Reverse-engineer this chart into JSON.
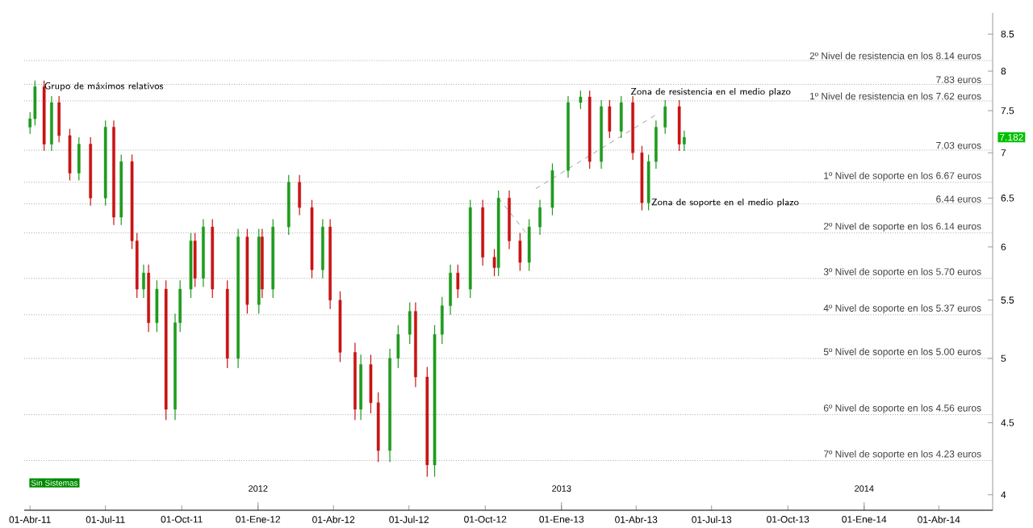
{
  "chart_data": {
    "type": "candlestick",
    "log": true,
    "xlim": [
      "2011-03-25",
      "2014-06-05"
    ],
    "ylim": [
      3.9,
      8.8
    ],
    "yticks": [
      4,
      4.5,
      5,
      5.5,
      6,
      6.5,
      7,
      7.5,
      8,
      8.5
    ],
    "xticks": [
      {
        "value": "2011-04-01",
        "label": "01-Abr-11"
      },
      {
        "value": "2011-07-01",
        "label": "01-Jul-11"
      },
      {
        "value": "2011-10-01",
        "label": "01-Oct-11"
      },
      {
        "value": "2012-01-01",
        "label": "01-Ene-12"
      },
      {
        "value": "2012-04-01",
        "label": "01-Abr-12"
      },
      {
        "value": "2012-07-01",
        "label": "01-Jul-12"
      },
      {
        "value": "2012-10-01",
        "label": "01-Oct-12"
      },
      {
        "value": "2013-01-01",
        "label": "01-Ene-13"
      },
      {
        "value": "2013-04-01",
        "label": "01-Abr-13"
      },
      {
        "value": "2013-07-01",
        "label": "01-Jul-13"
      },
      {
        "value": "2013-10-01",
        "label": "01-Oct-13"
      },
      {
        "value": "2014-01-01",
        "label": "01-Ene-14"
      },
      {
        "value": "2014-04-01",
        "label": "01-Abr-14"
      }
    ],
    "x": [
      "2011-04-01",
      "2011-04-07",
      "2011-04-18",
      "2011-04-27",
      "2011-05-06",
      "2011-05-19",
      "2011-05-30",
      "2011-06-13",
      "2011-07-01",
      "2011-07-11",
      "2011-07-20",
      "2011-08-02",
      "2011-08-08",
      "2011-08-16",
      "2011-08-22",
      "2011-09-01",
      "2011-09-12",
      "2011-09-23",
      "2011-09-29",
      "2011-10-12",
      "2011-10-17",
      "2011-10-27",
      "2011-11-07",
      "2011-11-25",
      "2011-12-08",
      "2011-12-19",
      "2012-01-02",
      "2012-01-06",
      "2012-01-19",
      "2012-02-07",
      "2012-02-20",
      "2012-03-06",
      "2012-03-19",
      "2012-03-28",
      "2012-04-09",
      "2012-04-27",
      "2012-05-04",
      "2012-05-16",
      "2012-05-25",
      "2012-06-08",
      "2012-06-18",
      "2012-07-02",
      "2012-07-09",
      "2012-07-23",
      "2012-08-01",
      "2012-08-10",
      "2012-08-20",
      "2012-08-29",
      "2012-09-13",
      "2012-09-28",
      "2012-10-12",
      "2012-10-17",
      "2012-10-30",
      "2012-11-12",
      "2012-11-23",
      "2012-12-06",
      "2012-12-21",
      "2013-01-09",
      "2013-01-24",
      "2013-02-04",
      "2013-02-18",
      "2013-02-28",
      "2013-03-14",
      "2013-03-28",
      "2013-04-08",
      "2013-04-16",
      "2013-04-25",
      "2013-05-06",
      "2013-05-23",
      "2013-05-29"
    ],
    "ohlc": [
      [
        7.3,
        7.48,
        7.22,
        7.4
      ],
      [
        7.4,
        7.88,
        7.32,
        7.8
      ],
      [
        7.8,
        7.88,
        7.02,
        7.1
      ],
      [
        7.1,
        7.68,
        7.02,
        7.6
      ],
      [
        7.6,
        7.68,
        7.12,
        7.2
      ],
      [
        7.2,
        7.28,
        6.69,
        6.77
      ],
      [
        6.77,
        7.18,
        6.69,
        7.1
      ],
      [
        7.1,
        7.18,
        6.42,
        6.5
      ],
      [
        6.5,
        7.38,
        6.42,
        7.3
      ],
      [
        7.3,
        7.38,
        6.22,
        6.3
      ],
      [
        6.3,
        6.98,
        6.22,
        6.9
      ],
      [
        6.9,
        6.98,
        5.98,
        6.06
      ],
      [
        6.06,
        6.14,
        5.52,
        5.6
      ],
      [
        5.6,
        5.83,
        5.52,
        5.75
      ],
      [
        5.75,
        5.83,
        5.22,
        5.3
      ],
      [
        5.3,
        5.68,
        5.22,
        5.6
      ],
      [
        5.6,
        5.68,
        4.52,
        4.6
      ],
      [
        4.6,
        5.38,
        4.52,
        5.3
      ],
      [
        5.3,
        5.68,
        5.22,
        5.6
      ],
      [
        5.6,
        6.14,
        5.52,
        6.06
      ],
      [
        6.06,
        6.14,
        5.62,
        5.7
      ],
      [
        5.7,
        6.28,
        5.62,
        6.2
      ],
      [
        6.2,
        6.28,
        5.52,
        5.6
      ],
      [
        5.6,
        5.68,
        4.92,
        5.0
      ],
      [
        5.0,
        6.18,
        4.92,
        6.1
      ],
      [
        6.1,
        6.18,
        5.38,
        5.46
      ],
      [
        5.46,
        6.18,
        5.38,
        6.1
      ],
      [
        6.1,
        6.18,
        5.52,
        5.6
      ],
      [
        5.6,
        6.28,
        5.52,
        6.2
      ],
      [
        6.2,
        6.75,
        6.12,
        6.67
      ],
      [
        6.67,
        6.75,
        6.32,
        6.4
      ],
      [
        6.4,
        6.48,
        5.7,
        5.78
      ],
      [
        5.78,
        6.28,
        5.7,
        6.2
      ],
      [
        6.2,
        6.28,
        5.42,
        5.5
      ],
      [
        5.5,
        5.58,
        4.97,
        5.05
      ],
      [
        5.05,
        5.13,
        4.52,
        4.6
      ],
      [
        4.6,
        5.03,
        4.52,
        4.95
      ],
      [
        4.95,
        5.03,
        4.57,
        4.65
      ],
      [
        4.65,
        4.73,
        4.22,
        4.3
      ],
      [
        4.3,
        5.08,
        4.22,
        5.0
      ],
      [
        5.0,
        5.28,
        4.92,
        5.2
      ],
      [
        5.2,
        5.48,
        5.12,
        5.4
      ],
      [
        5.4,
        5.48,
        4.77,
        4.85
      ],
      [
        4.85,
        4.93,
        4.12,
        4.2
      ],
      [
        4.2,
        5.28,
        4.12,
        5.2
      ],
      [
        5.2,
        5.53,
        5.12,
        5.45
      ],
      [
        5.45,
        5.83,
        5.37,
        5.75
      ],
      [
        5.75,
        5.83,
        5.52,
        5.6
      ],
      [
        5.6,
        6.48,
        5.52,
        6.4
      ],
      [
        6.4,
        6.48,
        5.82,
        5.9
      ],
      [
        5.9,
        5.98,
        5.72,
        5.8
      ],
      [
        5.8,
        6.58,
        5.72,
        6.5
      ],
      [
        6.5,
        6.58,
        5.98,
        6.06
      ],
      [
        6.06,
        6.14,
        5.77,
        5.85
      ],
      [
        5.85,
        6.28,
        5.77,
        6.2
      ],
      [
        6.2,
        6.48,
        6.12,
        6.4
      ],
      [
        6.4,
        6.88,
        6.32,
        6.8
      ],
      [
        6.8,
        7.68,
        6.72,
        7.6
      ],
      [
        7.6,
        7.75,
        7.52,
        7.67
      ],
      [
        7.67,
        7.75,
        6.82,
        6.9
      ],
      [
        6.9,
        7.63,
        6.82,
        7.55
      ],
      [
        7.55,
        7.63,
        7.17,
        7.25
      ],
      [
        7.25,
        7.68,
        7.17,
        7.6
      ],
      [
        7.6,
        7.68,
        6.92,
        7.0
      ],
      [
        7.0,
        7.08,
        6.37,
        6.45
      ],
      [
        6.45,
        6.98,
        6.37,
        6.9
      ],
      [
        6.9,
        7.38,
        6.82,
        7.3
      ],
      [
        7.3,
        7.63,
        7.22,
        7.55
      ],
      [
        7.55,
        7.63,
        7.02,
        7.1
      ],
      [
        7.1,
        7.26,
        7.02,
        7.18
      ]
    ],
    "series": [
      {
        "type": "line",
        "color": "#888888",
        "line_style": "dashed",
        "x": [
          "2012-10-17",
          "2012-11-23"
        ],
        "values": [
          6.5,
          6.1
        ]
      },
      {
        "type": "line",
        "color": "#888888",
        "line_style": "dashed",
        "x": [
          "2012-12-01",
          "2013-04-25"
        ],
        "values": [
          6.6,
          7.45
        ]
      }
    ],
    "ref_lines": [
      {
        "axis": "y",
        "value": 8.14,
        "label": "2º Nivel de resistencia en los 8.14 euros"
      },
      {
        "axis": "y",
        "value": 7.83,
        "label": "7.83 euros"
      },
      {
        "axis": "y",
        "value": 7.62,
        "label": "1º Nivel de resistencia en los 7.62 euros"
      },
      {
        "axis": "y",
        "value": 7.03,
        "label": "7.03 euros"
      },
      {
        "axis": "y",
        "value": 6.67,
        "label": "1º Nivel de soporte en los 6.67 euros"
      },
      {
        "axis": "y",
        "value": 6.44,
        "label": "6.44 euros"
      },
      {
        "axis": "y",
        "value": 6.14,
        "label": "2º Nivel de soporte en los 6.14 euros"
      },
      {
        "axis": "y",
        "value": 5.7,
        "label": "3º Nivel de soporte en los 5.70 euros"
      },
      {
        "axis": "y",
        "value": 5.37,
        "label": "4º Nivel de soporte en los 5.37 euros"
      },
      {
        "axis": "y",
        "value": 5.0,
        "label": "5º Nivel de soporte en los 5.00 euros"
      },
      {
        "axis": "y",
        "value": 4.56,
        "label": "6º Nivel de soporte en los 4.56 euros"
      },
      {
        "axis": "y",
        "value": 4.23,
        "label": "7º Nivel de soporte en los 4.23 euros"
      }
    ],
    "x2lim": [
      "2011-03-25",
      "2014-06-05"
    ],
    "x2ticks": [
      {
        "value": "2012-01-01",
        "label": "2012"
      },
      {
        "value": "2013-01-01",
        "label": "2013"
      },
      {
        "value": "2014-01-01",
        "label": "2014"
      }
    ],
    "annotations": [
      {
        "text": "Grupo de máximos relativos",
        "x": "2011-04-07",
        "y": 7.8
      },
      {
        "text": "Zona de resistencia en el medio plazo",
        "x": "2013-03-14",
        "y": 7.73
      },
      {
        "text": "Zona de soporte en el medio plazo",
        "x": "2013-04-08",
        "y": 6.45
      },
      "7.182",
      "Sin Sistemas"
    ]
  }
}
